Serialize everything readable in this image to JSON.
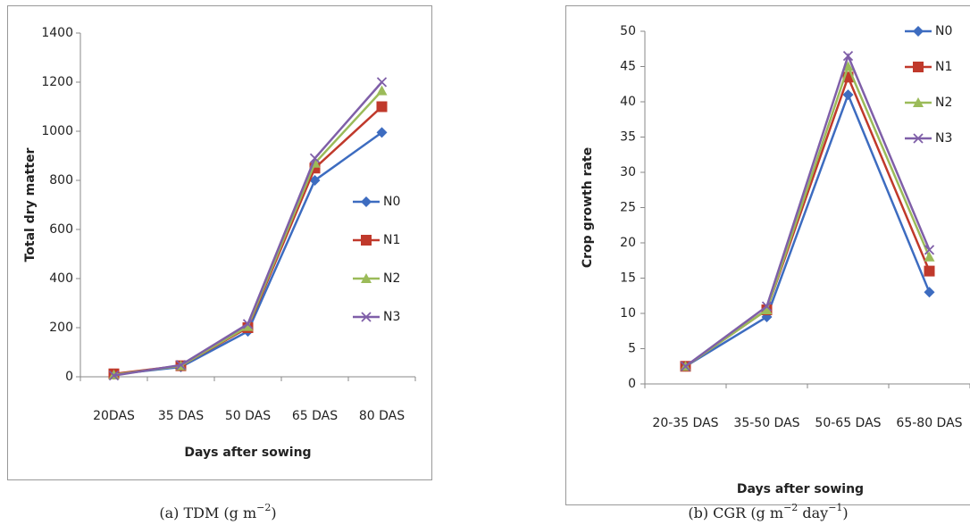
{
  "chart_data": [
    {
      "type": "line",
      "y_label": "Total dry matter",
      "x_label": "Days after sowing",
      "categories": [
        "20DAS",
        "35 DAS",
        "50 DAS",
        "65 DAS",
        "80 DAS"
      ],
      "ylim": [
        0,
        1400
      ],
      "yticks": [
        0,
        200,
        400,
        600,
        800,
        1000,
        1200,
        1400
      ],
      "legend": "right",
      "series": [
        {
          "name": "N0",
          "color": "#3d6cc0",
          "marker": "diamond",
          "values": [
            10,
            40,
            185,
            800,
            995
          ]
        },
        {
          "name": "N1",
          "color": "#c0392b",
          "marker": "square",
          "values": [
            12,
            45,
            200,
            850,
            1100
          ]
        },
        {
          "name": "N2",
          "color": "#9bbb59",
          "marker": "triangle",
          "values": [
            8,
            45,
            205,
            870,
            1165
          ]
        },
        {
          "name": "N3",
          "color": "#7f5fa8",
          "marker": "x",
          "values": [
            5,
            48,
            215,
            890,
            1200
          ]
        }
      ],
      "caption": [
        {
          "text": "(a) TDM (g m"
        },
        {
          "sup": "−2"
        },
        {
          "text": ")"
        }
      ]
    },
    {
      "type": "line",
      "y_label": "Crop growth rate",
      "x_label": "Days after sowing",
      "categories": [
        "20-35 DAS",
        "35-50 DAS",
        "50-65 DAS",
        "65-80 DAS"
      ],
      "ylim": [
        0,
        50
      ],
      "yticks": [
        0,
        5,
        10,
        15,
        20,
        25,
        30,
        35,
        40,
        45,
        50
      ],
      "legend": "top-right",
      "series": [
        {
          "name": "N0",
          "color": "#3d6cc0",
          "marker": "diamond",
          "values": [
            2.5,
            9.5,
            41,
            13
          ]
        },
        {
          "name": "N1",
          "color": "#c0392b",
          "marker": "square",
          "values": [
            2.5,
            10.5,
            43.5,
            16
          ]
        },
        {
          "name": "N2",
          "color": "#9bbb59",
          "marker": "triangle",
          "values": [
            2.5,
            10.5,
            45,
            18
          ]
        },
        {
          "name": "N3",
          "color": "#7f5fa8",
          "marker": "x",
          "values": [
            2.5,
            11,
            46.5,
            19
          ]
        }
      ],
      "caption": [
        {
          "text": "(b) CGR (g m"
        },
        {
          "sup": "−2"
        },
        {
          "text": " day"
        },
        {
          "sup": "−1"
        },
        {
          "text": ")"
        }
      ]
    }
  ]
}
